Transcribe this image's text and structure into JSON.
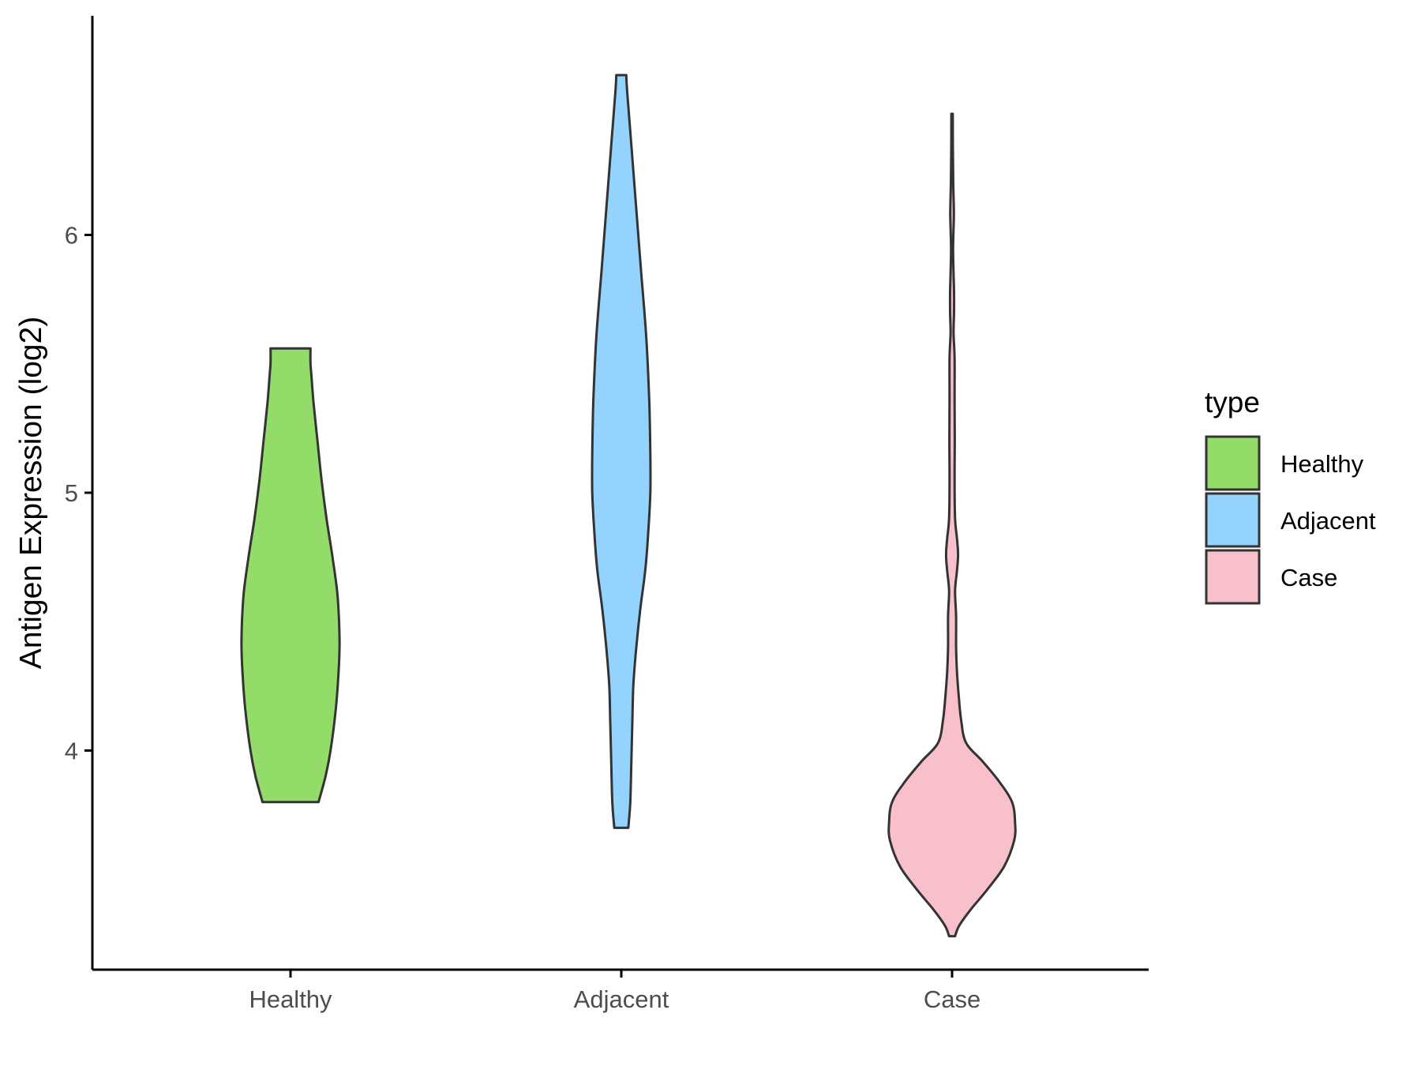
{
  "chart_data": {
    "type": "violin",
    "title": "",
    "xlabel": "",
    "ylabel": "Antigen Expression (log2)",
    "categories": [
      "Healthy",
      "Adjacent",
      "Case"
    ],
    "ylim": [
      3.15,
      6.85
    ],
    "yticks": [
      4,
      5,
      6
    ],
    "legend": {
      "title": "type",
      "placement": "right",
      "entries": [
        "Healthy",
        "Adjacent",
        "Case"
      ]
    },
    "colors": {
      "Healthy": "#93dc6a",
      "Adjacent": "#94d3fe",
      "Case": "#f7c0cb",
      "outline": "#333333"
    },
    "grid": false,
    "series": [
      {
        "category": "Healthy",
        "min": 3.8,
        "max": 5.56,
        "density": [
          [
            3.8,
            0.28
          ],
          [
            3.9,
            0.35
          ],
          [
            4.0,
            0.4
          ],
          [
            4.15,
            0.45
          ],
          [
            4.3,
            0.48
          ],
          [
            4.43,
            0.49
          ],
          [
            4.6,
            0.47
          ],
          [
            4.75,
            0.42
          ],
          [
            4.9,
            0.36
          ],
          [
            5.05,
            0.31
          ],
          [
            5.2,
            0.27
          ],
          [
            5.35,
            0.23
          ],
          [
            5.45,
            0.21
          ],
          [
            5.5,
            0.2
          ],
          [
            5.56,
            0.2
          ]
        ]
      },
      {
        "category": "Adjacent",
        "min": 3.7,
        "max": 6.62,
        "density": [
          [
            3.7,
            0.07
          ],
          [
            3.8,
            0.09
          ],
          [
            3.95,
            0.1
          ],
          [
            4.1,
            0.11
          ],
          [
            4.25,
            0.12
          ],
          [
            4.4,
            0.15
          ],
          [
            4.55,
            0.19
          ],
          [
            4.7,
            0.24
          ],
          [
            4.85,
            0.27
          ],
          [
            5.0,
            0.29
          ],
          [
            5.15,
            0.29
          ],
          [
            5.35,
            0.28
          ],
          [
            5.6,
            0.25
          ],
          [
            5.85,
            0.2
          ],
          [
            6.1,
            0.15
          ],
          [
            6.35,
            0.1
          ],
          [
            6.55,
            0.06
          ],
          [
            6.62,
            0.05
          ]
        ]
      },
      {
        "category": "Case",
        "min": 3.28,
        "max": 6.47,
        "density": [
          [
            3.28,
            0.03
          ],
          [
            3.32,
            0.07
          ],
          [
            3.38,
            0.18
          ],
          [
            3.46,
            0.35
          ],
          [
            3.55,
            0.52
          ],
          [
            3.65,
            0.62
          ],
          [
            3.72,
            0.63
          ],
          [
            3.8,
            0.6
          ],
          [
            3.88,
            0.47
          ],
          [
            3.96,
            0.3
          ],
          [
            4.03,
            0.14
          ],
          [
            4.12,
            0.09
          ],
          [
            4.22,
            0.065
          ],
          [
            4.3,
            0.05
          ],
          [
            4.4,
            0.04
          ],
          [
            4.52,
            0.04
          ],
          [
            4.62,
            0.03
          ],
          [
            4.7,
            0.05
          ],
          [
            4.76,
            0.06
          ],
          [
            4.82,
            0.05
          ],
          [
            4.9,
            0.03
          ],
          [
            5.05,
            0.025
          ],
          [
            5.2,
            0.027
          ],
          [
            5.35,
            0.025
          ],
          [
            5.52,
            0.025
          ],
          [
            5.62,
            0.015
          ],
          [
            5.7,
            0.02
          ],
          [
            5.78,
            0.02
          ],
          [
            5.85,
            0.015
          ],
          [
            5.95,
            0.01
          ],
          [
            6.08,
            0.018
          ],
          [
            6.2,
            0.012
          ],
          [
            6.35,
            0.008
          ],
          [
            6.47,
            0.007
          ]
        ]
      }
    ]
  }
}
